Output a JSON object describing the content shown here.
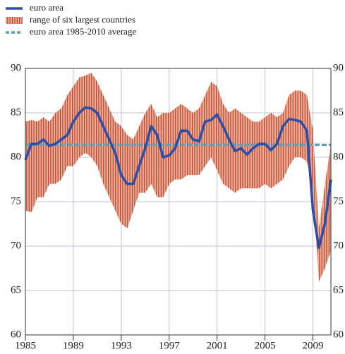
{
  "chart_data": {
    "type": "line",
    "x": [
      1985,
      1985.5,
      1986,
      1986.5,
      1987,
      1987.5,
      1988,
      1988.5,
      1989,
      1989.5,
      1990,
      1990.5,
      1991,
      1991.5,
      1992,
      1992.5,
      1993,
      1993.5,
      1994,
      1994.5,
      1995,
      1995.5,
      1996,
      1996.5,
      1997,
      1997.5,
      1998,
      1998.5,
      1999,
      1999.5,
      2000,
      2000.5,
      2001,
      2001.5,
      2002,
      2002.5,
      2003,
      2003.5,
      2004,
      2004.5,
      2005,
      2005.5,
      2006,
      2006.5,
      2007,
      2007.5,
      2008,
      2008.5,
      2009,
      2009.5,
      2010,
      2010.5
    ],
    "series": [
      {
        "name": "euro area",
        "type": "line",
        "color": "#2d4da6",
        "values": [
          79.7,
          81.5,
          81.5,
          82,
          81.3,
          81.5,
          82,
          82.5,
          84,
          85,
          85.6,
          85.5,
          85,
          83.5,
          82,
          80.5,
          78,
          77,
          77,
          79,
          81,
          83.5,
          82.5,
          80,
          80.2,
          81,
          83,
          83,
          82,
          81.8,
          84,
          84.2,
          84.8,
          83.5,
          82,
          80.7,
          81,
          80.3,
          81,
          81.5,
          81.5,
          80.8,
          81.5,
          83.5,
          84.3,
          84.2,
          84,
          83,
          74,
          69.8,
          72.5,
          77.5
        ]
      },
      {
        "name": "range of six largest countries",
        "type": "range",
        "color": "#e9a88c",
        "high": [
          84,
          84.2,
          84,
          84.5,
          84,
          85,
          85.5,
          87,
          88,
          89,
          89.2,
          89.5,
          88.5,
          87,
          85.5,
          84,
          83.5,
          82.5,
          82,
          83.5,
          85,
          86,
          84.5,
          85,
          85,
          85.5,
          86,
          85.5,
          85,
          85.5,
          87,
          88.5,
          88,
          86,
          85,
          85.5,
          85,
          84.5,
          84,
          84,
          84.5,
          85,
          84.5,
          85,
          87,
          87.5,
          87.5,
          87,
          83,
          72,
          77,
          81.5
        ],
        "low": [
          74,
          73.8,
          75.5,
          75.5,
          77,
          77,
          77.5,
          79,
          79,
          80,
          80.5,
          80,
          79,
          77,
          75.5,
          74,
          72.5,
          72,
          74,
          76,
          76,
          77,
          75.5,
          75.5,
          77,
          77.5,
          77.5,
          78,
          78,
          78,
          79,
          80,
          78.5,
          77,
          76.5,
          76,
          76.5,
          76.5,
          76.5,
          76.5,
          77,
          76.5,
          77,
          77.5,
          79,
          80,
          80,
          79.5,
          76,
          66,
          67.5,
          69.5
        ]
      },
      {
        "name": "euro area 1985-2010 average",
        "type": "hline",
        "color": "#6e9cae",
        "value": 81.4
      }
    ],
    "xlim": [
      1985,
      2010.5
    ],
    "xticks": [
      1985,
      1989,
      1993,
      1997,
      2001,
      2005,
      2009
    ],
    "ylim": [
      60,
      90
    ],
    "yticks": [
      60,
      65,
      70,
      75,
      80,
      85,
      90
    ],
    "grid": true
  }
}
